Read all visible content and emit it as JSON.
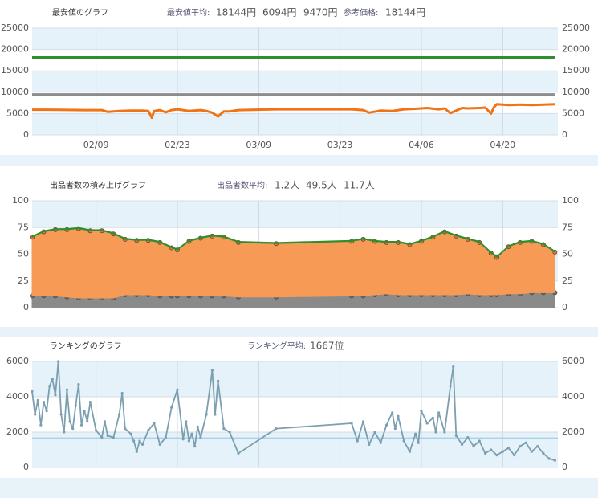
{
  "chart_data": [
    {
      "type": "line",
      "title": "最安値のグラフ",
      "stat_label": "最安値平均:",
      "reference_label": "参考価格:",
      "reference": "18144円",
      "reference_color": "#c8874b",
      "xlim": [
        0,
        90.5
      ],
      "xticks": [
        {
          "value": 11,
          "label": "02/09"
        },
        {
          "value": 25,
          "label": "02/23"
        },
        {
          "value": 39,
          "label": "03/09"
        },
        {
          "value": 53,
          "label": "03/23"
        },
        {
          "value": 67,
          "label": "04/06"
        },
        {
          "value": 81,
          "label": "04/20"
        }
      ],
      "ylim": [
        0,
        25000
      ],
      "yticks": [
        0,
        5000,
        10000,
        15000,
        20000,
        25000
      ],
      "grid": true,
      "series": [
        {
          "stat": "18144円",
          "color": "#2f8f2f",
          "x": [
            0,
            35.5,
            42,
            55,
            90
          ],
          "values": [
            18144,
            18144,
            18144,
            18144,
            18144
          ]
        },
        {
          "stat": "6094円",
          "color": "#f07315",
          "x": [
            0,
            3,
            6,
            9,
            12,
            13,
            15,
            17,
            19,
            20,
            20.6,
            21,
            22,
            23,
            24,
            25,
            27,
            29,
            30,
            31,
            32,
            33,
            34,
            35.5,
            42,
            55,
            57,
            58,
            60,
            62,
            64,
            66,
            68,
            70,
            71,
            72,
            74,
            75,
            77,
            78,
            79,
            79.5,
            80,
            82,
            84,
            86,
            88,
            90
          ],
          "values": [
            5900,
            5900,
            5850,
            5800,
            5800,
            5400,
            5600,
            5700,
            5700,
            5600,
            4000,
            5600,
            5800,
            5300,
            5800,
            6000,
            5600,
            5800,
            5600,
            5200,
            4300,
            5500,
            5500,
            5800,
            6000,
            6000,
            5800,
            5200,
            5700,
            5600,
            6000,
            6100,
            6300,
            6000,
            6200,
            5100,
            6300,
            6200,
            6300,
            6400,
            5000,
            6500,
            7200,
            7000,
            7100,
            7000,
            7100,
            7200
          ]
        },
        {
          "stat": "9470円",
          "color": "#8c8c8c",
          "x": [
            0,
            35.5,
            42,
            55,
            90
          ],
          "values": [
            9470,
            9470,
            9470,
            9470,
            9470
          ]
        }
      ]
    },
    {
      "type": "stacked_area",
      "title": "出品者数の積み上げグラフ",
      "stat_label": "出品者数平均:",
      "xlim": [
        0,
        90.5
      ],
      "ylim": [
        0,
        100
      ],
      "yticks": [
        0,
        25,
        50,
        75,
        100
      ],
      "grid": true,
      "x": [
        0,
        2,
        4,
        6,
        8,
        10,
        12,
        14,
        16,
        18,
        20,
        22,
        24,
        25,
        27,
        29,
        31,
        33,
        35.5,
        42,
        55,
        57,
        59,
        61,
        63,
        65,
        67,
        69,
        71,
        73,
        75,
        77,
        79,
        80,
        82,
        84,
        86,
        88,
        90
      ],
      "series": [
        {
          "stat": "1.2人",
          "color": "#2f8f2f",
          "values": [
            1,
            1,
            1,
            1,
            1,
            1,
            1,
            1,
            1,
            1,
            1,
            1,
            1,
            1,
            1,
            1,
            1,
            1,
            1,
            1,
            1,
            1,
            1,
            1,
            1,
            1,
            1,
            1,
            1,
            1,
            1,
            1,
            1,
            1,
            1,
            1,
            1,
            1,
            1
          ]
        },
        {
          "stat": "49.5人",
          "color": "#f79a56",
          "values": [
            55,
            60,
            62,
            63,
            65,
            63,
            63,
            60,
            52,
            51,
            51,
            50,
            45,
            43,
            51,
            54,
            56,
            55,
            51,
            50,
            51,
            53,
            50,
            48,
            49,
            47,
            50,
            54,
            59,
            55,
            51,
            49,
            39,
            35,
            44,
            48,
            48,
            45,
            38
          ]
        },
        {
          "stat": "11.7人",
          "color": "#8a8a8a",
          "values": [
            11,
            11,
            11,
            10,
            9,
            9,
            9,
            9,
            12,
            12,
            12,
            11,
            11,
            11,
            11,
            11,
            11,
            11,
            10,
            10,
            11,
            11,
            12,
            13,
            12,
            12,
            12,
            12,
            12,
            12,
            13,
            12,
            12,
            12,
            13,
            13,
            14,
            14,
            14
          ]
        }
      ]
    },
    {
      "type": "line",
      "title": "ランキングのグラフ",
      "stat_label": "ランキング平均:",
      "average": 1667,
      "xlim": [
        0,
        90.5
      ],
      "ylim": [
        0,
        6000
      ],
      "yticks": [
        0,
        2000,
        4000,
        6000
      ],
      "grid": true,
      "series": [
        {
          "stat": "1667位",
          "color": "#7b9fb1",
          "x": [
            0,
            0.5,
            1,
            1.5,
            2,
            2.5,
            3,
            3.5,
            4,
            4.5,
            5,
            5.5,
            6,
            6.5,
            7,
            7.5,
            8,
            8.5,
            9,
            9.5,
            10,
            11,
            12,
            12.5,
            13,
            14,
            15,
            15.5,
            16,
            17,
            17.5,
            18,
            18.5,
            19,
            20,
            21,
            22,
            23,
            24,
            25,
            26,
            26.5,
            27,
            27.5,
            28,
            28.5,
            29,
            30,
            31,
            31.5,
            32,
            33,
            34,
            35.5,
            42,
            55,
            56,
            57,
            58,
            59,
            60,
            61,
            62,
            62.5,
            63,
            64,
            65,
            66,
            66.5,
            67,
            68,
            69,
            69.5,
            70,
            71,
            72,
            72.5,
            73,
            74,
            75,
            76,
            77,
            78,
            79,
            80,
            81,
            82,
            83,
            84,
            85,
            86,
            87,
            88,
            89,
            90
          ],
          "values": [
            4300,
            3000,
            3800,
            2400,
            3700,
            3200,
            4600,
            5000,
            4100,
            6000,
            3000,
            2000,
            4400,
            2600,
            2200,
            3500,
            4700,
            2400,
            3200,
            2600,
            3700,
            2100,
            1700,
            2600,
            1800,
            1700,
            3000,
            4200,
            2200,
            1900,
            1500,
            900,
            1500,
            1300,
            2100,
            2500,
            1300,
            1700,
            3400,
            4400,
            1600,
            2600,
            1500,
            1900,
            1200,
            2300,
            1700,
            3000,
            5500,
            3000,
            4900,
            2200,
            2000,
            800,
            2200,
            2500,
            1500,
            2600,
            1300,
            2000,
            1400,
            2400,
            3100,
            2200,
            2900,
            1500,
            900,
            1900,
            1400,
            3200,
            2500,
            2800,
            2000,
            3100,
            2000,
            4600,
            5700,
            1800,
            1300,
            1700,
            1200,
            1500,
            800,
            1000,
            700,
            900,
            1100,
            700,
            1200,
            1400,
            900,
            1200,
            800,
            500,
            400
          ]
        }
      ]
    }
  ]
}
